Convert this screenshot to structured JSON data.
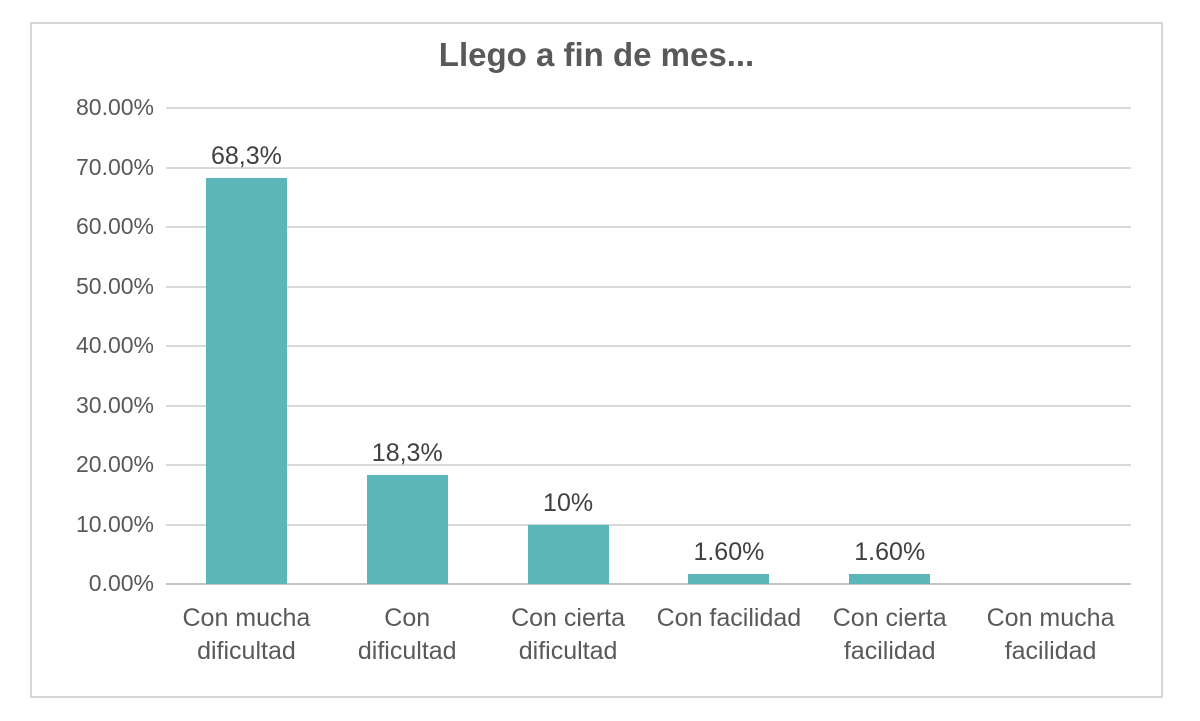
{
  "chart_data": {
    "type": "bar",
    "title": "Llego a fin de mes...",
    "categories": [
      "Con mucha dificultad",
      "Con dificultad",
      "Con cierta dificultad",
      "Con facilidad",
      "Con cierta facilidad",
      "Con mucha facilidad"
    ],
    "values": [
      68.3,
      18.3,
      10,
      1.6,
      1.6,
      0
    ],
    "data_labels": [
      "68,3%",
      "18,3%",
      "10%",
      "1.60%",
      "1.60%",
      ""
    ],
    "y_ticks": [
      "80.00%",
      "70.00%",
      "60.00%",
      "50.00%",
      "40.00%",
      "30.00%",
      "20.00%",
      "10.00%",
      "0.00%"
    ],
    "ylim": [
      0,
      80
    ],
    "xlabel": "",
    "ylabel": "",
    "grid": true,
    "legend": false,
    "colors": {
      "bar": "#5ab6b8",
      "title_text": "#595959",
      "axis_text": "#595959",
      "data_label_text": "#404040",
      "gridline": "#d9d9d9",
      "frame_border": "#d6d6d6",
      "background": "#ffffff"
    }
  }
}
